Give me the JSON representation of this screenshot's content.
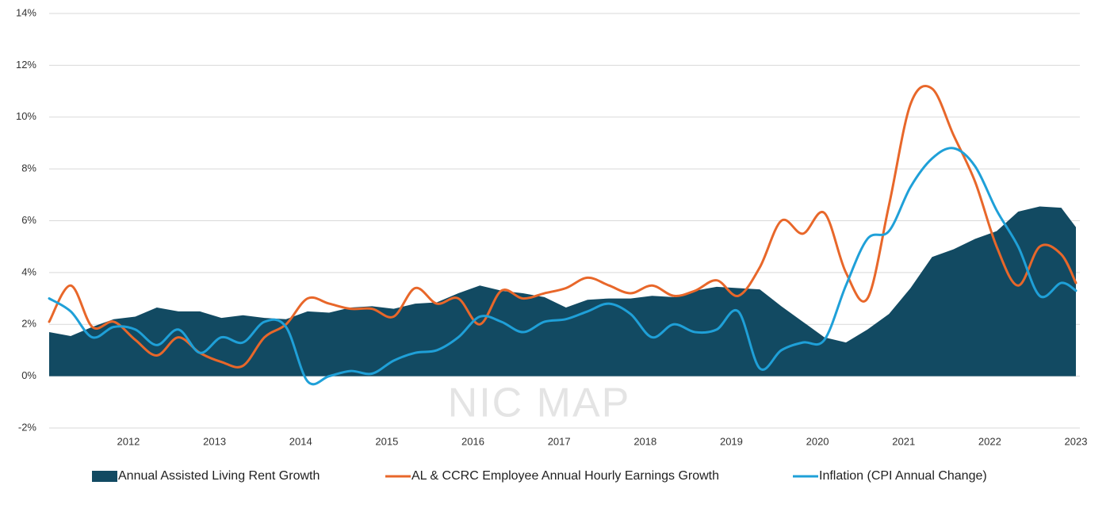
{
  "chart_data": {
    "type": "area-line",
    "watermark": "NIC MAP",
    "x": [
      2011.08,
      2011.33,
      2011.58,
      2011.83,
      2012.08,
      2012.33,
      2012.58,
      2012.83,
      2013.08,
      2013.33,
      2013.58,
      2013.83,
      2014.08,
      2014.33,
      2014.58,
      2014.83,
      2015.08,
      2015.33,
      2015.58,
      2015.83,
      2016.08,
      2016.33,
      2016.58,
      2016.83,
      2017.08,
      2017.33,
      2017.58,
      2017.83,
      2018.08,
      2018.33,
      2018.58,
      2018.83,
      2019.08,
      2019.33,
      2019.58,
      2019.83,
      2020.08,
      2020.33,
      2020.58,
      2020.83,
      2021.08,
      2021.33,
      2021.58,
      2021.83,
      2022.08,
      2022.33,
      2022.58,
      2022.83,
      2023.0
    ],
    "series": [
      {
        "name": "Annual Assisted Living Rent Growth",
        "color": "#124a62",
        "kind": "area",
        "values": [
          1.7,
          1.55,
          1.9,
          2.2,
          2.3,
          2.65,
          2.5,
          2.5,
          2.25,
          2.35,
          2.25,
          2.2,
          2.5,
          2.45,
          2.65,
          2.7,
          2.6,
          2.8,
          2.85,
          3.2,
          3.5,
          3.3,
          3.2,
          3.05,
          2.65,
          2.95,
          3.0,
          3.0,
          3.1,
          3.05,
          3.3,
          3.45,
          3.4,
          3.35,
          2.7,
          2.1,
          1.5,
          1.3,
          1.8,
          2.4,
          3.4,
          4.6,
          4.9,
          5.3,
          5.6,
          6.35,
          6.55,
          6.5,
          5.75
        ]
      },
      {
        "name": "AL & CCRC Employee Annual Hourly Earnings Growth",
        "color": "#e8672a",
        "kind": "line",
        "values": [
          2.1,
          3.5,
          1.9,
          2.1,
          1.4,
          0.8,
          1.5,
          0.9,
          0.55,
          0.4,
          1.5,
          2.0,
          3.0,
          2.8,
          2.6,
          2.6,
          2.3,
          3.4,
          2.8,
          3.0,
          2.0,
          3.3,
          3.0,
          3.2,
          3.4,
          3.8,
          3.5,
          3.2,
          3.5,
          3.1,
          3.3,
          3.7,
          3.1,
          4.2,
          6.0,
          5.5,
          6.3,
          4.0,
          3.0,
          6.6,
          10.5,
          11.1,
          9.3,
          7.5,
          5.0,
          3.5,
          5.0,
          4.7,
          3.6
        ]
      },
      {
        "name": "Inflation (CPI Annual Change)",
        "color": "#1fa0d8",
        "kind": "line",
        "values": [
          3.0,
          2.5,
          1.5,
          1.9,
          1.8,
          1.2,
          1.8,
          0.9,
          1.5,
          1.3,
          2.1,
          1.9,
          -0.2,
          0.0,
          0.2,
          0.1,
          0.6,
          0.9,
          1.0,
          1.5,
          2.3,
          2.1,
          1.7,
          2.1,
          2.2,
          2.5,
          2.8,
          2.4,
          1.5,
          2.0,
          1.7,
          1.8,
          2.5,
          0.3,
          1.0,
          1.3,
          1.4,
          3.5,
          5.3,
          5.6,
          7.3,
          8.4,
          8.8,
          8.1,
          6.4,
          5.0,
          3.1,
          3.6,
          3.3
        ]
      }
    ],
    "xlim": [
      2011.08,
      2023.0
    ],
    "xticks": [
      2012,
      2013,
      2014,
      2015,
      2016,
      2017,
      2018,
      2019,
      2020,
      2021,
      2022,
      2023
    ],
    "ylim": [
      -2,
      14
    ],
    "yticks": [
      {
        "value": -2,
        "label": "-2%"
      },
      {
        "value": 0,
        "label": "0%"
      },
      {
        "value": 2,
        "label": "2%"
      },
      {
        "value": 4,
        "label": "4%"
      },
      {
        "value": 6,
        "label": "6%"
      },
      {
        "value": 8,
        "label": "8%"
      },
      {
        "value": 10,
        "label": "10%"
      },
      {
        "value": 12,
        "label": "12%"
      },
      {
        "value": 14,
        "label": "14%"
      }
    ],
    "grid": true,
    "legend": "bottom"
  }
}
